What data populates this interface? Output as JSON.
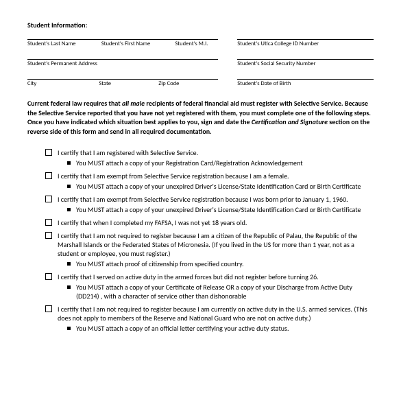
{
  "header": "Student Information:",
  "rows": {
    "r1": {
      "leftFields": [
        "Student's Last Name",
        "Student's First Name",
        "Student's M.I."
      ],
      "rightField": "Student's Utica College ID Number"
    },
    "r2": {
      "leftFields": [
        "Student's Permanent Address"
      ],
      "rightField": "Student's Social Security Number"
    },
    "r3": {
      "leftFields": [
        "City",
        "State",
        "Zip Code"
      ],
      "rightField": "Student's Date of Birth"
    }
  },
  "instructions_parts": {
    "p1": "Current federal law requires that ",
    "em1": "all male",
    "p2": " recipients of federal financial aid must register with Selective Service. Because the Selective Service reported that you have not yet registered with them, you must complete one of the following steps. Once you have indicated which situation best applies to you, sign and date the ",
    "em2": "Certification and Signature",
    "p3": " section on the reverse side of this form and send in all required documentation."
  },
  "items": [
    {
      "text": "I certify that I am registered with Selective Service.",
      "subs": [
        "You MUST attach a copy of your Registration Card/Registration Acknowledgement"
      ]
    },
    {
      "text": "I certify that I am exempt from Selective Service registration because I am a female.",
      "subs": [
        "You MUST attach a copy of your unexpired Driver's License/State Identification Card or Birth Certificate"
      ]
    },
    {
      "text": "I certify that I am exempt from Selective Service registration because I was born prior to January 1, 1960.",
      "subs": [
        "You MUST attach a copy of your unexpired Driver's License/State Identification Card or Birth Certificate"
      ]
    },
    {
      "text": "I certify that when I completed my FAFSA, I was not yet 18 years old.",
      "subs": []
    },
    {
      "text": "I certify that I am not required to register because I am a citizen of the Republic of Palau, the Republic of the Marshall Islands or the Federated States of Micronesia. (If you lived in the US for more than 1 year, not as a student or employee, you must register.)",
      "subs": [
        "You MUST attach proof of citizenship from specified country."
      ]
    },
    {
      "text": "I certify that I served on active duty in the armed forces but did not register before turning 26.",
      "subs": [
        "You MUST attach a copy of your Certificate of Release OR a copy of your Discharge from Active Duty (DD214) , with a character of service other than dishonorable"
      ]
    },
    {
      "text": "I certify that I am not required to register because I am currently on active duty in the U.S. armed services. (This does not apply to members of the Reserve and National Guard who are not on active duty.)",
      "subs": [
        "You MUST attach a copy of an official letter certifying your active duty status."
      ]
    }
  ]
}
